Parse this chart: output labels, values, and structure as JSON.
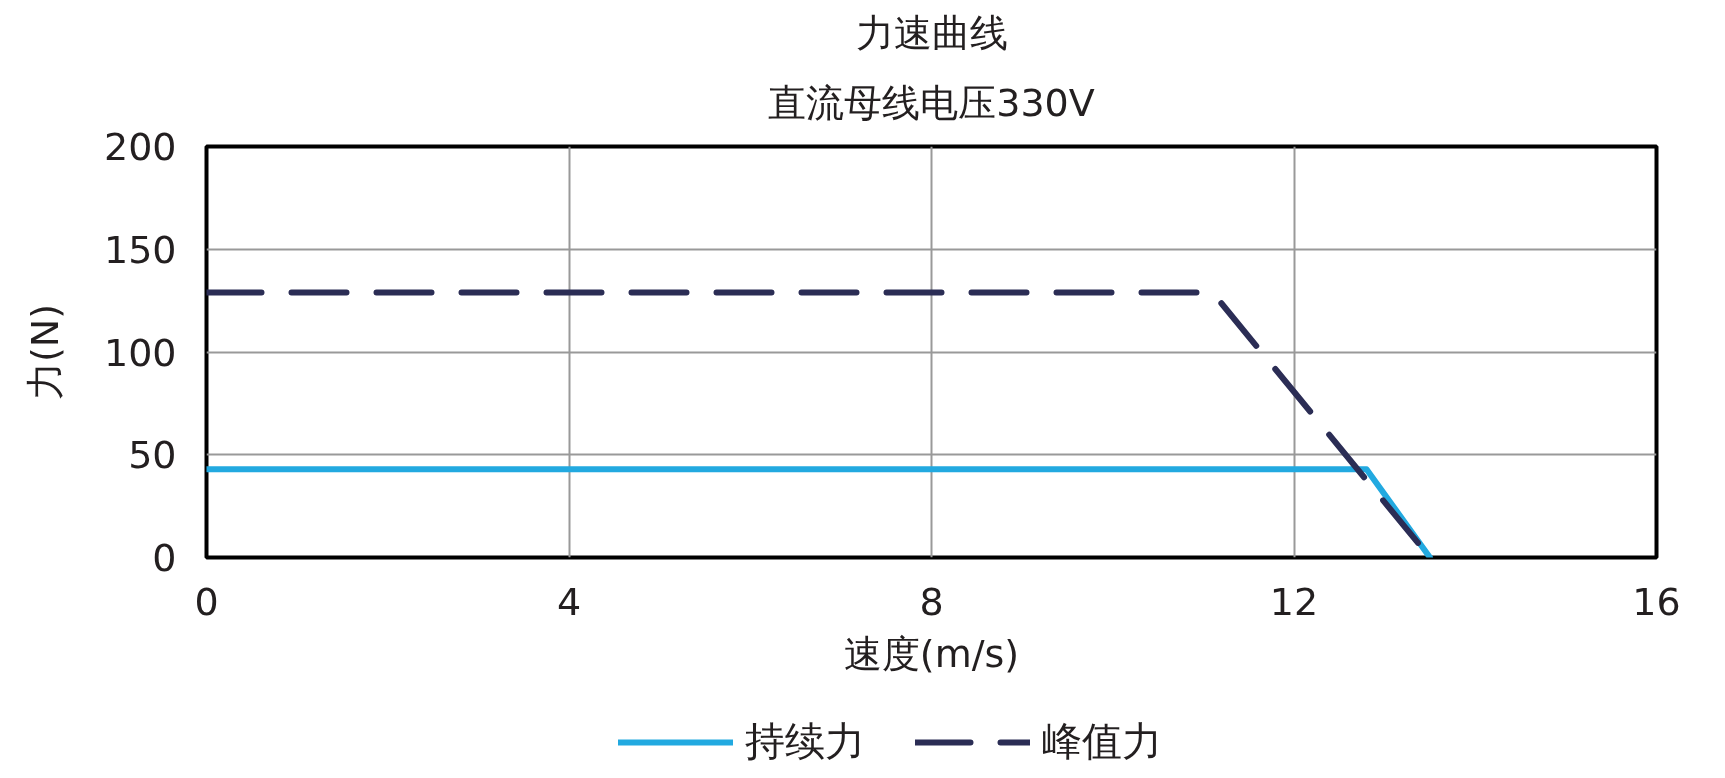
{
  "chart_data": {
    "type": "line",
    "title": "力速曲线",
    "subtitle": "直流母线电压330V",
    "xlabel": "速度(m/s)",
    "ylabel": "力(N)",
    "xlim": [
      0,
      16
    ],
    "xticks": [
      0,
      4,
      8,
      12,
      16
    ],
    "ylim": [
      0,
      200
    ],
    "yticks": [
      0,
      50,
      100,
      150,
      200
    ],
    "grid": true,
    "legend": "bottom",
    "series": [
      {
        "name": "持续力",
        "color": "#22a9e0",
        "line_style": "solid",
        "x": [
          0,
          12.8,
          13.5
        ],
        "values": [
          43,
          43,
          0
        ]
      },
      {
        "name": "峰值力",
        "color": "#2b2d55",
        "line_style": "dashed",
        "x": [
          0,
          11.1,
          13.5
        ],
        "values": [
          129,
          129,
          0
        ]
      }
    ]
  }
}
